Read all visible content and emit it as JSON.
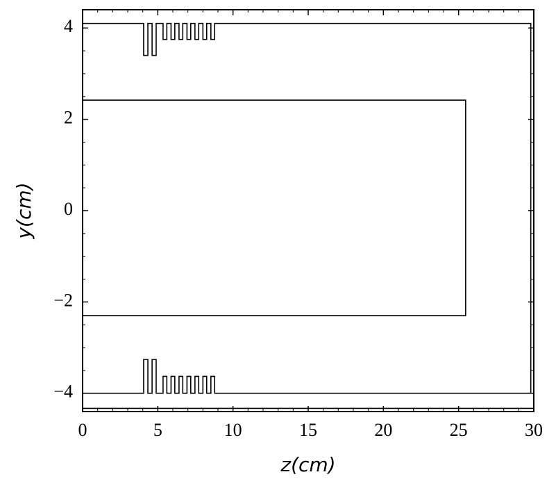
{
  "chart_data": {
    "type": "line",
    "xlabel": "z(cm)",
    "ylabel": "y(cm)",
    "xlim": [
      0,
      30
    ],
    "ylim": [
      -4.4,
      4.4
    ],
    "xticks": [
      0,
      5,
      10,
      15,
      20,
      25,
      30
    ],
    "yticks": [
      {
        "value": -4,
        "label": "−4"
      },
      {
        "value": -2,
        "label": "−2"
      },
      0,
      2,
      4
    ],
    "xminorticks": [
      1,
      2,
      3,
      4,
      6,
      7,
      8,
      9,
      11,
      12,
      13,
      14,
      16,
      17,
      18,
      19,
      21,
      22,
      23,
      24,
      26,
      27,
      28,
      29
    ],
    "yminorticks": [
      -3.5,
      -3,
      -2.5,
      -1.5,
      -1,
      -0.5,
      0.5,
      1,
      1.5,
      2.5,
      3,
      3.5
    ],
    "series": [
      {
        "color": "#000000",
        "x": [
          0,
          4.06,
          4.06,
          4.34,
          4.34,
          4.62,
          4.62,
          4.89,
          4.89,
          5.35,
          5.35,
          5.6,
          5.6,
          5.88,
          5.88,
          6.13,
          6.13,
          6.41,
          6.41,
          6.66,
          6.66,
          6.94,
          6.94,
          7.19,
          7.19,
          7.47,
          7.47,
          7.72,
          7.72,
          8.0,
          8.0,
          8.25,
          8.25,
          8.53,
          8.53,
          8.78,
          8.78,
          29.8,
          29.8
        ],
        "values": [
          4.1,
          4.1,
          3.4,
          3.4,
          4.1,
          4.1,
          3.4,
          3.4,
          4.1,
          4.1,
          3.75,
          3.75,
          4.1,
          4.1,
          3.75,
          3.75,
          4.1,
          4.1,
          3.75,
          3.75,
          4.1,
          4.1,
          3.75,
          3.75,
          4.1,
          4.1,
          3.75,
          3.75,
          4.1,
          4.1,
          3.75,
          3.75,
          4.1,
          4.1,
          3.75,
          3.75,
          4.1,
          4.1,
          -4.0
        ]
      },
      {
        "color": "#000000",
        "x": [
          0,
          4.06,
          4.06,
          4.34,
          4.34,
          4.62,
          4.62,
          4.89,
          4.89,
          5.35,
          5.35,
          5.6,
          5.6,
          5.88,
          5.88,
          6.13,
          6.13,
          6.41,
          6.41,
          6.66,
          6.66,
          6.94,
          6.94,
          7.19,
          7.19,
          7.47,
          7.47,
          7.72,
          7.72,
          8.0,
          8.0,
          8.25,
          8.25,
          8.53,
          8.53,
          8.78,
          8.78,
          29.8
        ],
        "values": [
          -4,
          -4,
          -3.26,
          -3.26,
          -4,
          -4,
          -3.26,
          -3.26,
          -4,
          -4,
          -3.63,
          -3.63,
          -4,
          -4,
          -3.63,
          -3.63,
          -4,
          -4,
          -3.63,
          -3.63,
          -4,
          -4,
          -3.63,
          -3.63,
          -4,
          -4,
          -3.63,
          -3.63,
          -4,
          -4,
          -3.63,
          -3.63,
          -4,
          -4,
          -3.63,
          -3.63,
          -4,
          -4
        ]
      },
      {
        "color": "#000000",
        "x": [
          0,
          25.47,
          25.47,
          0
        ],
        "values": [
          2.42,
          2.42,
          -2.3,
          -2.3
        ]
      },
      {
        "color": "#000000",
        "x": [
          0,
          30
        ],
        "values": [
          -4.33,
          -4.33
        ]
      }
    ]
  }
}
